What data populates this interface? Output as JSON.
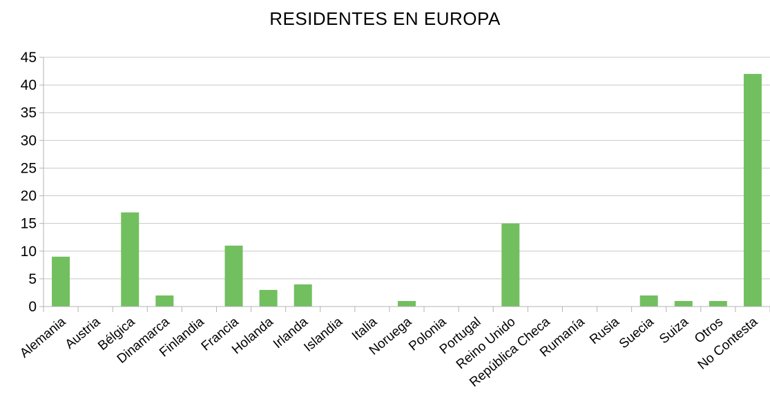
{
  "chart_data": {
    "type": "bar",
    "title": "RESIDENTES EN EUROPA",
    "xlabel": "",
    "ylabel": "",
    "ylim": [
      0,
      45
    ],
    "yticks": [
      0,
      5,
      10,
      15,
      20,
      25,
      30,
      35,
      40,
      45
    ],
    "grid": true,
    "legend": "none",
    "bar_color": "#72bf5f",
    "categories": [
      "Alemania",
      "Austria",
      "Bélgica",
      "Dinamarca",
      "Finlandia",
      "Francia",
      "Holanda",
      "Irlanda",
      "Islandia",
      "Italia",
      "Noruega",
      "Polonia",
      "Portugal",
      "Reino Unido",
      "República Checa",
      "Rumanía",
      "Rusia",
      "Suecia",
      "Suiza",
      "Otros",
      "No Contesta"
    ],
    "values": [
      9,
      0,
      17,
      2,
      0,
      11,
      3,
      4,
      0,
      0,
      1,
      0,
      0,
      15,
      0,
      0,
      0,
      2,
      1,
      1,
      42
    ]
  }
}
